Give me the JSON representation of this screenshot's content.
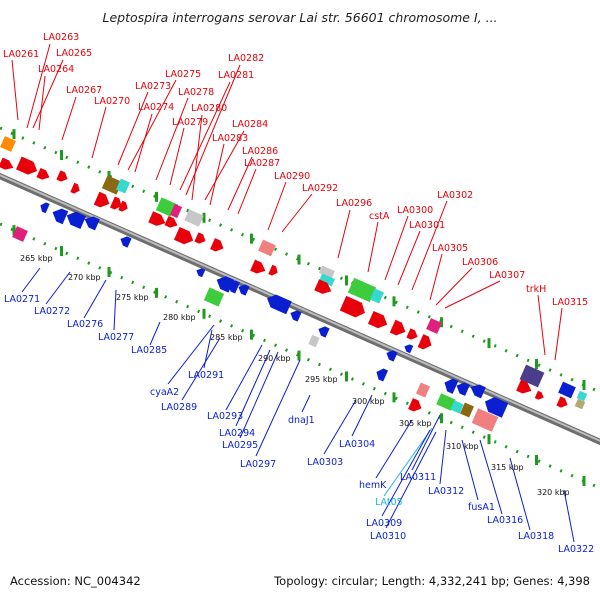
{
  "title": "Leptospira interrogans serovar Lai str. 56601 chromosome I, ...",
  "footer": {
    "accession": "Accession: NC_004342",
    "summary": "Topology: circular; Length: 4,332,241 bp; Genes: 4,398"
  },
  "colors": {
    "forward_label": "#e8000b",
    "reverse_label": "#0a1fd0",
    "rna_label": "#19b4e8",
    "backbone": "#8a8a8a",
    "dots": "#1f9a1f"
  },
  "scale_labels": [
    "265 kbp",
    "270 kbp",
    "275 kbp",
    "280 kbp",
    "285 kbp",
    "290 kbp",
    "295 kbp",
    "300 kbp",
    "305 kbp",
    "310 kbp",
    "315 kbp",
    "320 kbp"
  ],
  "forward_genes": [
    "LA0261",
    "LA0263",
    "LA0265",
    "LA0264",
    "LA0267",
    "LA0270",
    "LA0273",
    "LA0275",
    "LA0274",
    "LA0278",
    "LA0281",
    "LA0282",
    "LA0280",
    "LA0279",
    "LA0284",
    "LA0283",
    "LA0286",
    "LA0287",
    "LA0290",
    "LA0292",
    "LA0296",
    "cstA",
    "LA0300",
    "LA0301",
    "LA0302",
    "LA0305",
    "LA0306",
    "LA0307",
    "trkH",
    "LA0315"
  ],
  "reverse_genes": [
    "LA0271",
    "LA0272",
    "LA0276",
    "LA0277",
    "LA0285",
    "cyaA2",
    "LA0291",
    "LA0289",
    "LA0293",
    "LA0294",
    "LA0295",
    "LA0297",
    "dnaJ1",
    "LA0303",
    "LA0304",
    "hemK",
    "LA0311",
    "LAt05",
    "LA0309",
    "LA0310",
    "LA0312",
    "fusA1",
    "LA0316",
    "LA0318",
    "LA0322"
  ]
}
